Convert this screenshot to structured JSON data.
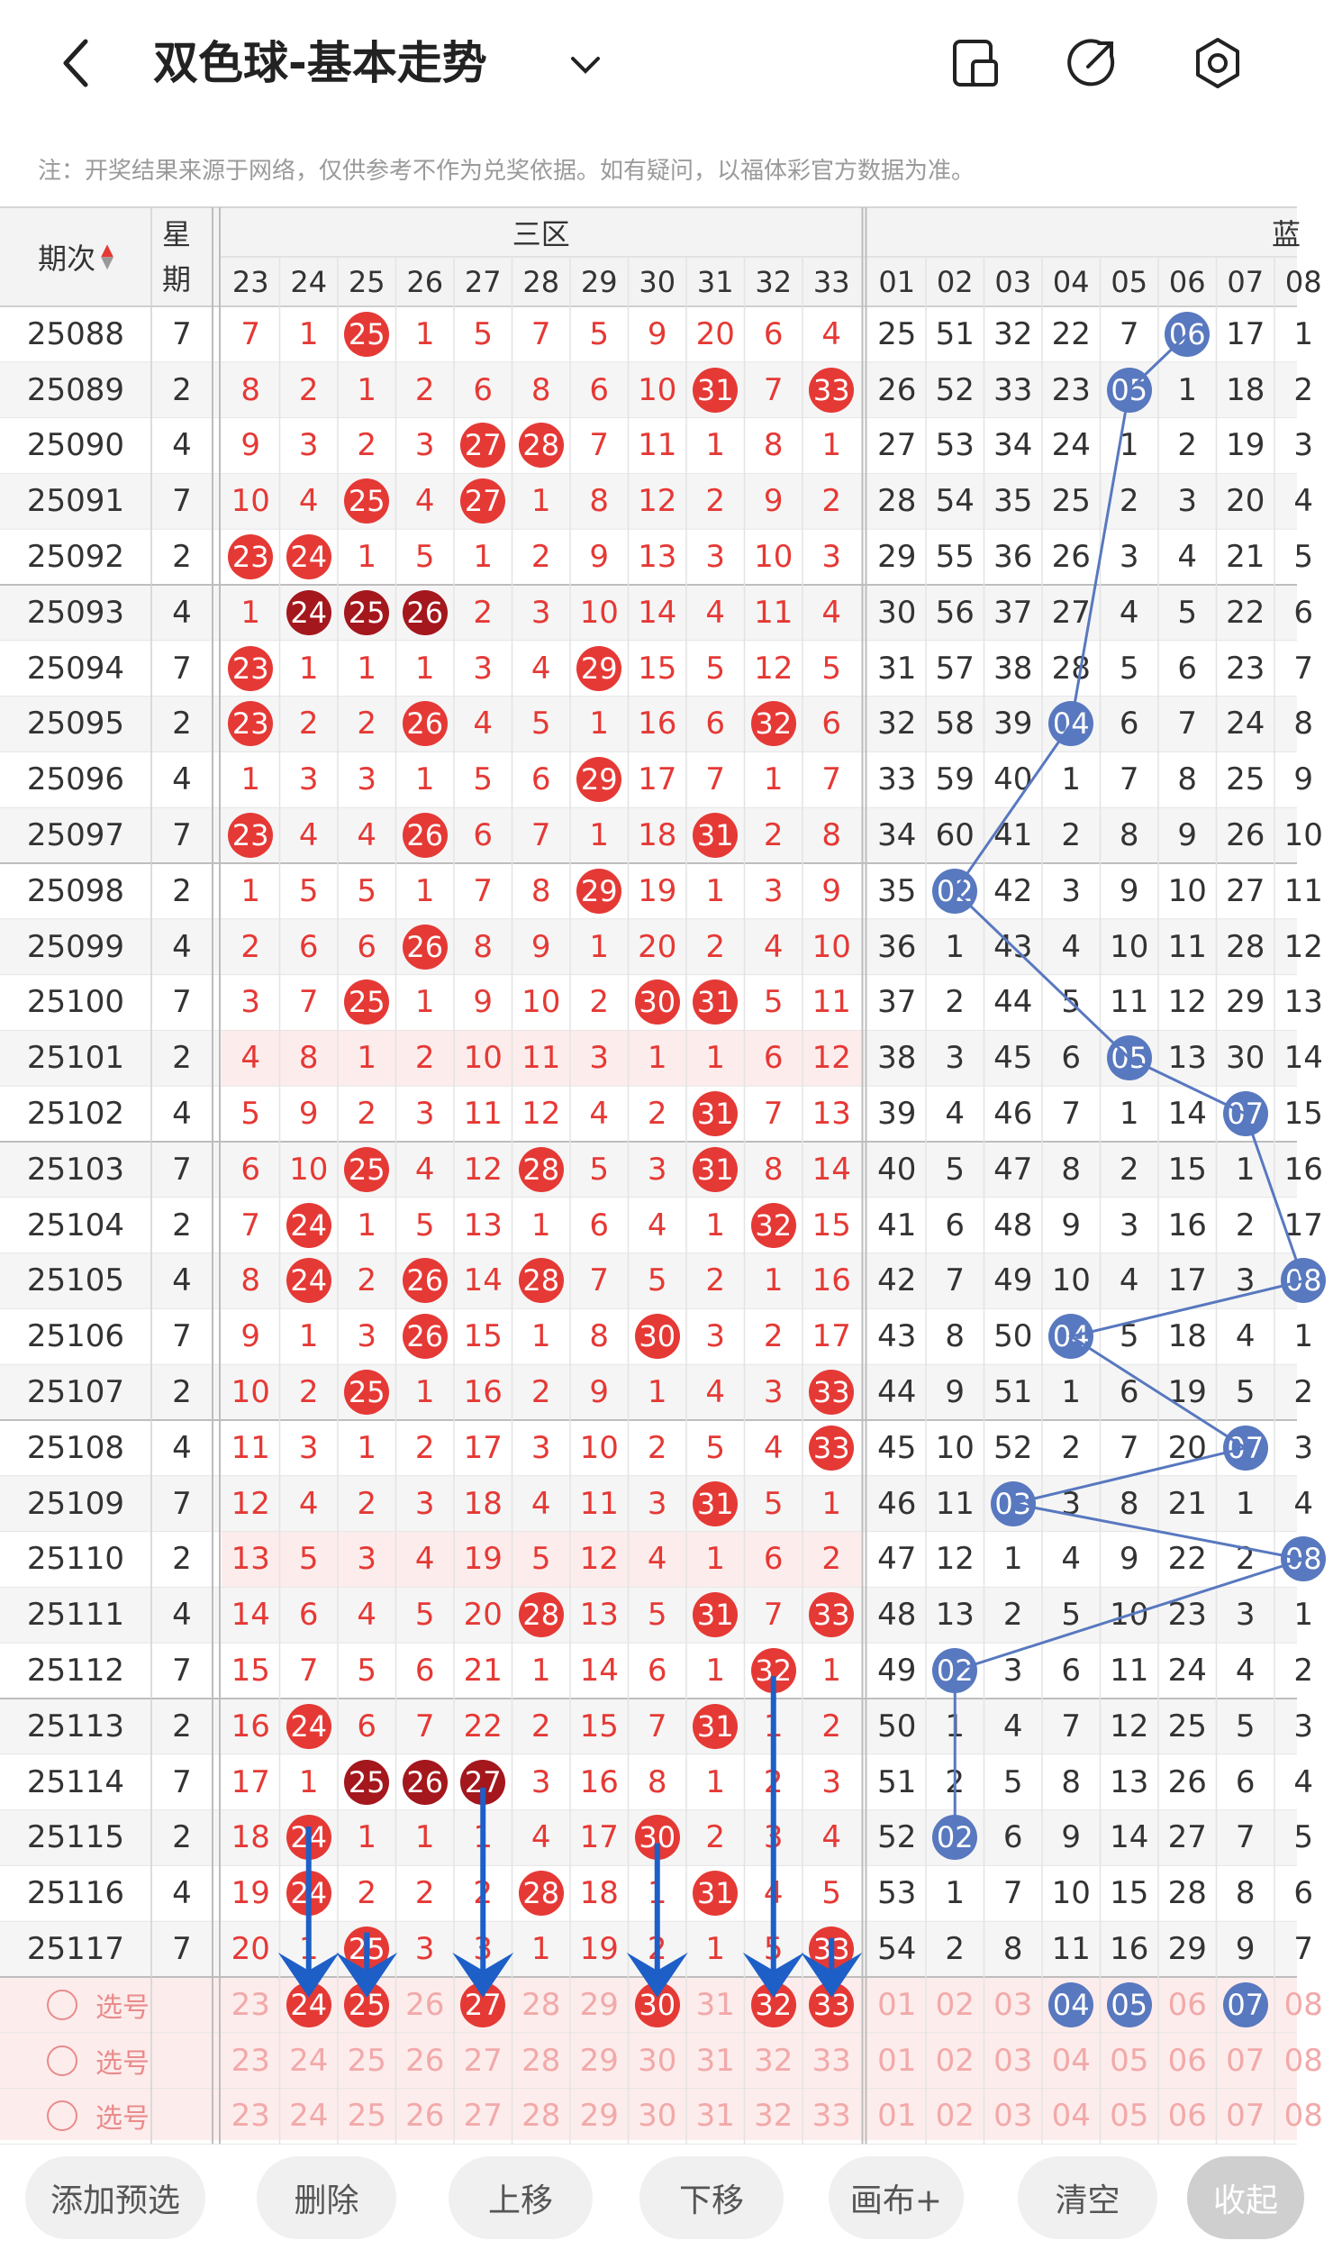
{
  "header": {
    "title": "双色球-基本走势",
    "icons": [
      "back-arrow-icon",
      "chevron-down-icon",
      "phone-layout-icon",
      "share-icon",
      "settings-icon"
    ]
  },
  "notice": "注：开奖结果来源于网络，仅供参考不作为兑奖依据。如有疑问，以福体彩官方数据为准。",
  "table": {
    "col_period": "期次",
    "col_week": "星期",
    "zone3_label": "三区",
    "zone_blue_label": "蓝",
    "red_headers": [
      "23",
      "24",
      "25",
      "26",
      "27",
      "28",
      "29",
      "30",
      "31",
      "32",
      "33"
    ],
    "blue_headers": [
      "01",
      "02",
      "03",
      "04",
      "05",
      "06",
      "07",
      "08"
    ],
    "rows": [
      {
        "period": "25088",
        "week": "7",
        "red": [
          "7",
          "1",
          "25",
          "1",
          "5",
          "7",
          "5",
          "9",
          "20",
          "6",
          "4"
        ],
        "blue": [
          "25",
          "51",
          "32",
          "22",
          "7",
          "06",
          "17",
          "1"
        ]
      },
      {
        "period": "25089",
        "week": "2",
        "red": [
          "8",
          "2",
          "1",
          "2",
          "6",
          "8",
          "6",
          "10",
          "31",
          "7",
          "33"
        ],
        "blue": [
          "26",
          "52",
          "33",
          "23",
          "05",
          "1",
          "18",
          "2"
        ]
      },
      {
        "period": "25090",
        "week": "4",
        "red": [
          "9",
          "3",
          "2",
          "3",
          "27",
          "28",
          "7",
          "11",
          "1",
          "8",
          "1"
        ],
        "blue": [
          "27",
          "53",
          "34",
          "24",
          "1",
          "2",
          "19",
          "3"
        ]
      },
      {
        "period": "25091",
        "week": "7",
        "red": [
          "10",
          "4",
          "25",
          "4",
          "27",
          "1",
          "8",
          "12",
          "2",
          "9",
          "2"
        ],
        "blue": [
          "28",
          "54",
          "35",
          "25",
          "2",
          "3",
          "20",
          "4"
        ]
      },
      {
        "period": "25092",
        "week": "2",
        "red": [
          "23",
          "24",
          "1",
          "5",
          "1",
          "2",
          "9",
          "13",
          "3",
          "10",
          "3"
        ],
        "blue": [
          "29",
          "55",
          "36",
          "26",
          "3",
          "4",
          "21",
          "5"
        ]
      },
      {
        "period": "25093",
        "week": "4",
        "red": [
          "1",
          "24",
          "25",
          "26",
          "2",
          "3",
          "10",
          "14",
          "4",
          "11",
          "4"
        ],
        "blue": [
          "30",
          "56",
          "37",
          "27",
          "4",
          "5",
          "22",
          "6"
        ]
      },
      {
        "period": "25094",
        "week": "7",
        "red": [
          "23",
          "1",
          "1",
          "1",
          "3",
          "4",
          "29",
          "15",
          "5",
          "12",
          "5"
        ],
        "blue": [
          "31",
          "57",
          "38",
          "28",
          "5",
          "6",
          "23",
          "7"
        ]
      },
      {
        "period": "25095",
        "week": "2",
        "red": [
          "23",
          "2",
          "2",
          "26",
          "4",
          "5",
          "1",
          "16",
          "6",
          "32",
          "6"
        ],
        "blue": [
          "32",
          "58",
          "39",
          "04",
          "6",
          "7",
          "24",
          "8"
        ]
      },
      {
        "period": "25096",
        "week": "4",
        "red": [
          "1",
          "3",
          "3",
          "1",
          "5",
          "6",
          "29",
          "17",
          "7",
          "1",
          "7"
        ],
        "blue": [
          "33",
          "59",
          "40",
          "1",
          "7",
          "8",
          "25",
          "9"
        ]
      },
      {
        "period": "25097",
        "week": "7",
        "red": [
          "23",
          "4",
          "4",
          "26",
          "6",
          "7",
          "1",
          "18",
          "31",
          "2",
          "8"
        ],
        "blue": [
          "34",
          "60",
          "41",
          "2",
          "8",
          "9",
          "26",
          "10"
        ]
      },
      {
        "period": "25098",
        "week": "2",
        "red": [
          "1",
          "5",
          "5",
          "1",
          "7",
          "8",
          "29",
          "19",
          "1",
          "3",
          "9"
        ],
        "blue": [
          "35",
          "02",
          "42",
          "3",
          "9",
          "10",
          "27",
          "11"
        ]
      },
      {
        "period": "25099",
        "week": "4",
        "red": [
          "2",
          "6",
          "6",
          "26",
          "8",
          "9",
          "1",
          "20",
          "2",
          "4",
          "10"
        ],
        "blue": [
          "36",
          "1",
          "43",
          "4",
          "10",
          "11",
          "28",
          "12"
        ]
      },
      {
        "period": "25100",
        "week": "7",
        "red": [
          "3",
          "7",
          "25",
          "1",
          "9",
          "10",
          "2",
          "30",
          "31",
          "5",
          "11"
        ],
        "blue": [
          "37",
          "2",
          "44",
          "5",
          "11",
          "12",
          "29",
          "13"
        ]
      },
      {
        "period": "25101",
        "week": "2",
        "red": [
          "4",
          "8",
          "1",
          "2",
          "10",
          "11",
          "3",
          "1",
          "1",
          "6",
          "12"
        ],
        "blue": [
          "38",
          "3",
          "45",
          "6",
          "05",
          "13",
          "30",
          "14"
        ]
      },
      {
        "period": "25102",
        "week": "4",
        "red": [
          "5",
          "9",
          "2",
          "3",
          "11",
          "12",
          "4",
          "2",
          "31",
          "7",
          "13"
        ],
        "blue": [
          "39",
          "4",
          "46",
          "7",
          "1",
          "14",
          "07",
          "15"
        ]
      },
      {
        "period": "25103",
        "week": "7",
        "red": [
          "6",
          "10",
          "25",
          "4",
          "12",
          "28",
          "5",
          "3",
          "31",
          "8",
          "14"
        ],
        "blue": [
          "40",
          "5",
          "47",
          "8",
          "2",
          "15",
          "1",
          "16"
        ]
      },
      {
        "period": "25104",
        "week": "2",
        "red": [
          "7",
          "24",
          "1",
          "5",
          "13",
          "1",
          "6",
          "4",
          "1",
          "32",
          "15"
        ],
        "blue": [
          "41",
          "6",
          "48",
          "9",
          "3",
          "16",
          "2",
          "17"
        ]
      },
      {
        "period": "25105",
        "week": "4",
        "red": [
          "8",
          "24",
          "2",
          "26",
          "14",
          "28",
          "7",
          "5",
          "2",
          "1",
          "16"
        ],
        "blue": [
          "42",
          "7",
          "49",
          "10",
          "4",
          "17",
          "3",
          "08"
        ]
      },
      {
        "period": "25106",
        "week": "7",
        "red": [
          "9",
          "1",
          "3",
          "26",
          "15",
          "1",
          "8",
          "30",
          "3",
          "2",
          "17"
        ],
        "blue": [
          "43",
          "8",
          "50",
          "04",
          "5",
          "18",
          "4",
          "1"
        ]
      },
      {
        "period": "25107",
        "week": "2",
        "red": [
          "10",
          "2",
          "25",
          "1",
          "16",
          "2",
          "9",
          "1",
          "4",
          "3",
          "33"
        ],
        "blue": [
          "44",
          "9",
          "51",
          "1",
          "6",
          "19",
          "5",
          "2"
        ]
      },
      {
        "period": "25108",
        "week": "4",
        "red": [
          "11",
          "3",
          "1",
          "2",
          "17",
          "3",
          "10",
          "2",
          "5",
          "4",
          "33"
        ],
        "blue": [
          "45",
          "10",
          "52",
          "2",
          "7",
          "20",
          "07",
          "3"
        ]
      },
      {
        "period": "25109",
        "week": "7",
        "red": [
          "12",
          "4",
          "2",
          "3",
          "18",
          "4",
          "11",
          "3",
          "31",
          "5",
          "1"
        ],
        "blue": [
          "46",
          "11",
          "03",
          "3",
          "8",
          "21",
          "1",
          "4"
        ]
      },
      {
        "period": "25110",
        "week": "2",
        "red": [
          "13",
          "5",
          "3",
          "4",
          "19",
          "5",
          "12",
          "4",
          "1",
          "6",
          "2"
        ],
        "blue": [
          "47",
          "12",
          "1",
          "4",
          "9",
          "22",
          "2",
          "08"
        ]
      },
      {
        "period": "25111",
        "week": "4",
        "red": [
          "14",
          "6",
          "4",
          "5",
          "20",
          "28",
          "13",
          "5",
          "31",
          "7",
          "33"
        ],
        "blue": [
          "48",
          "13",
          "2",
          "5",
          "10",
          "23",
          "3",
          "1"
        ]
      },
      {
        "period": "25112",
        "week": "7",
        "red": [
          "15",
          "7",
          "5",
          "6",
          "21",
          "1",
          "14",
          "6",
          "1",
          "32",
          "1"
        ],
        "blue": [
          "49",
          "02",
          "3",
          "6",
          "11",
          "24",
          "4",
          "2"
        ]
      },
      {
        "period": "25113",
        "week": "2",
        "red": [
          "16",
          "24",
          "6",
          "7",
          "22",
          "2",
          "15",
          "7",
          "31",
          "1",
          "2"
        ],
        "blue": [
          "50",
          "1",
          "4",
          "7",
          "12",
          "25",
          "5",
          "3"
        ]
      },
      {
        "period": "25114",
        "week": "7",
        "red": [
          "17",
          "1",
          "25",
          "26",
          "27",
          "3",
          "16",
          "8",
          "1",
          "2",
          "3"
        ],
        "blue": [
          "51",
          "2",
          "5",
          "8",
          "13",
          "26",
          "6",
          "4"
        ]
      },
      {
        "period": "25115",
        "week": "2",
        "red": [
          "18",
          "24",
          "1",
          "1",
          "1",
          "4",
          "17",
          "30",
          "2",
          "3",
          "4"
        ],
        "blue": [
          "52",
          "02",
          "6",
          "9",
          "14",
          "27",
          "7",
          "5"
        ]
      },
      {
        "period": "25116",
        "week": "4",
        "red": [
          "19",
          "24",
          "2",
          "2",
          "2",
          "28",
          "18",
          "1",
          "31",
          "4",
          "5"
        ],
        "blue": [
          "53",
          "1",
          "7",
          "10",
          "15",
          "28",
          "8",
          "6"
        ]
      },
      {
        "period": "25117",
        "week": "7",
        "red": [
          "20",
          "1",
          "25",
          "3",
          "3",
          "1",
          "19",
          "2",
          "1",
          "5",
          "33"
        ],
        "blue": [
          "54",
          "2",
          "8",
          "11",
          "16",
          "29",
          "9",
          "7"
        ]
      }
    ],
    "select_label": "选号",
    "select_rows": [
      {
        "picked_red": [
          "24",
          "25",
          "27",
          "30",
          "32",
          "33"
        ],
        "picked_blue": [
          "04",
          "05",
          "07"
        ]
      },
      {
        "picked_red": [],
        "picked_blue": []
      },
      {
        "picked_red": [],
        "picked_blue": []
      }
    ]
  },
  "footer": {
    "buttons": [
      "添加预选",
      "删除",
      "上移",
      "下移",
      "画布+",
      "清空",
      "收起"
    ]
  },
  "colors": {
    "red": "#e53935",
    "dark_red": "#a3171d",
    "blue_ball": "#5878bf",
    "arrow_blue": "#1d5fc7",
    "pink_bg": "#fdecec"
  }
}
